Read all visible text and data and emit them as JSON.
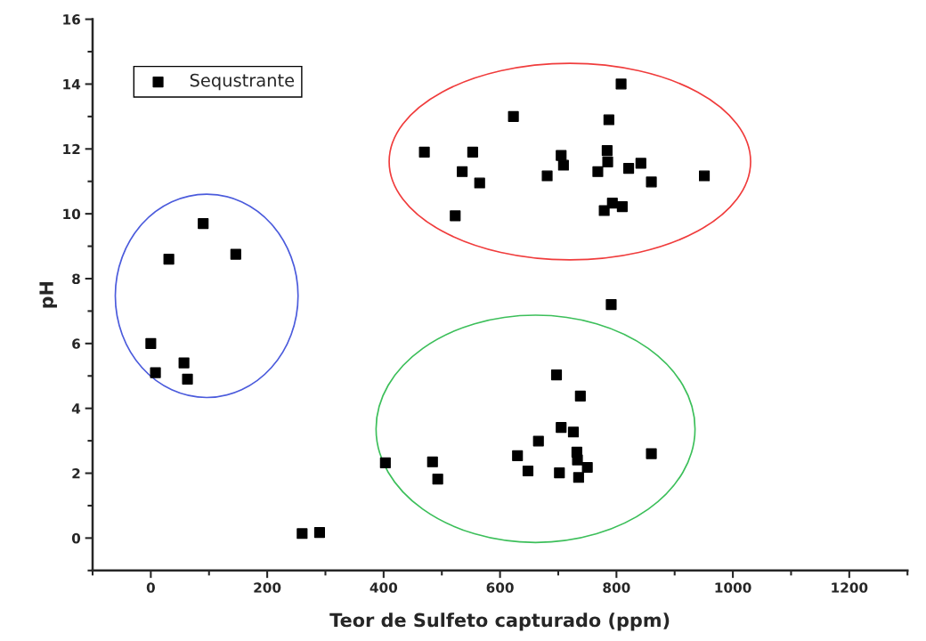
{
  "chart_data": {
    "type": "scatter",
    "xlabel": "Teor de Sulfeto capturado (ppm)",
    "ylabel": "pH",
    "xlim": [
      -100,
      1300
    ],
    "xticks": [
      0,
      200,
      400,
      600,
      800,
      1000,
      1200
    ],
    "ylim": [
      -1,
      16
    ],
    "yticks": [
      0,
      2,
      4,
      6,
      8,
      10,
      12,
      14,
      16
    ],
    "grid": false,
    "legend": "top left",
    "marker": "square",
    "series": [
      {
        "name": "Sequstrante",
        "color": "#000000",
        "x": [
          0,
          4,
          8,
          31,
          90,
          146,
          57,
          63,
          260,
          290,
          808,
          623,
          787,
          470,
          553,
          705,
          709,
          535,
          565,
          681,
          784,
          785,
          768,
          821,
          842,
          860,
          951,
          523,
          779,
          793,
          810,
          791,
          697,
          738,
          705,
          726,
          666,
          630,
          732,
          733,
          750,
          648,
          702,
          735,
          860,
          403,
          484,
          493
        ],
        "values": [
          6.0,
          null,
          5.1,
          8.6,
          9.7,
          8.75,
          5.4,
          4.9,
          0.14,
          0.17,
          14.0,
          13.0,
          12.9,
          11.9,
          11.9,
          11.8,
          11.5,
          11.3,
          10.95,
          11.17,
          11.95,
          11.6,
          11.3,
          11.4,
          11.56,
          10.98,
          11.17,
          9.94,
          10.1,
          10.33,
          10.22,
          7.2,
          5.03,
          4.38,
          3.41,
          3.27,
          2.99,
          2.54,
          2.65,
          2.41,
          2.18,
          2.07,
          2.01,
          1.87,
          2.6,
          2.32,
          2.35,
          1.82
        ]
      }
    ]
  }
}
